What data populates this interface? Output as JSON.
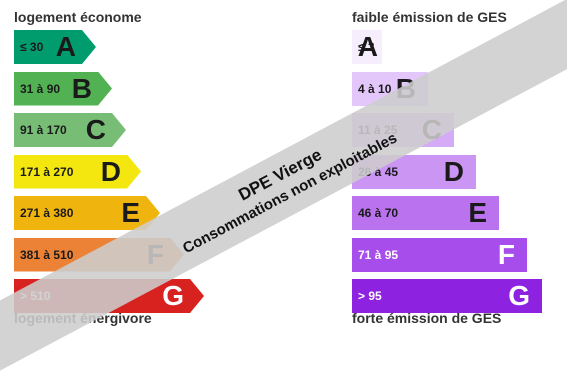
{
  "energy": {
    "header": "logement économe",
    "footer": "logement énergivore",
    "classes": [
      {
        "letter": "A",
        "range": "≤ 30",
        "color": "#009C6D",
        "text_color": "#1a1a1a"
      },
      {
        "letter": "B",
        "range": "31 à 90",
        "color": "#52B153",
        "text_color": "#1a1a1a"
      },
      {
        "letter": "C",
        "range": "91 à 170",
        "color": "#78BD76",
        "text_color": "#1a1a1a"
      },
      {
        "letter": "D",
        "range": "171 à 270",
        "color": "#F4E70F",
        "text_color": "#1a1a1a"
      },
      {
        "letter": "E",
        "range": "271 à 380",
        "color": "#F0B40F",
        "text_color": "#1a1a1a"
      },
      {
        "letter": "F",
        "range": "381 à 510",
        "color": "#EB8235",
        "text_color": "#1a1a1a"
      },
      {
        "letter": "G",
        "range": "> 510",
        "color": "#D7221F",
        "text_color": "#ffffff"
      }
    ]
  },
  "ges": {
    "header": "faible émission de GES",
    "footer": "forte émission de GES",
    "classes": [
      {
        "letter": "A",
        "range": "≤ 3",
        "color": "#F6EDFD",
        "text_color": "#1a1a1a"
      },
      {
        "letter": "B",
        "range": "4 à 10",
        "color": "#E4C7FA",
        "text_color": "#1a1a1a"
      },
      {
        "letter": "C",
        "range": "11 à 25",
        "color": "#D5AAF6",
        "text_color": "#1a1a1a"
      },
      {
        "letter": "D",
        "range": "26 à 45",
        "color": "#CB95F3",
        "text_color": "#1a1a1a"
      },
      {
        "letter": "E",
        "range": "46 à 70",
        "color": "#BA72EF",
        "text_color": "#1a1a1a"
      },
      {
        "letter": "F",
        "range": "71 à 95",
        "color": "#A74DEB",
        "text_color": "#ffffff"
      },
      {
        "letter": "G",
        "range": "> 95",
        "color": "#8D23E1",
        "text_color": "#ffffff"
      }
    ]
  },
  "watermark": {
    "line1": "DPE Vierge",
    "line2": "Consommations non exploitables"
  }
}
